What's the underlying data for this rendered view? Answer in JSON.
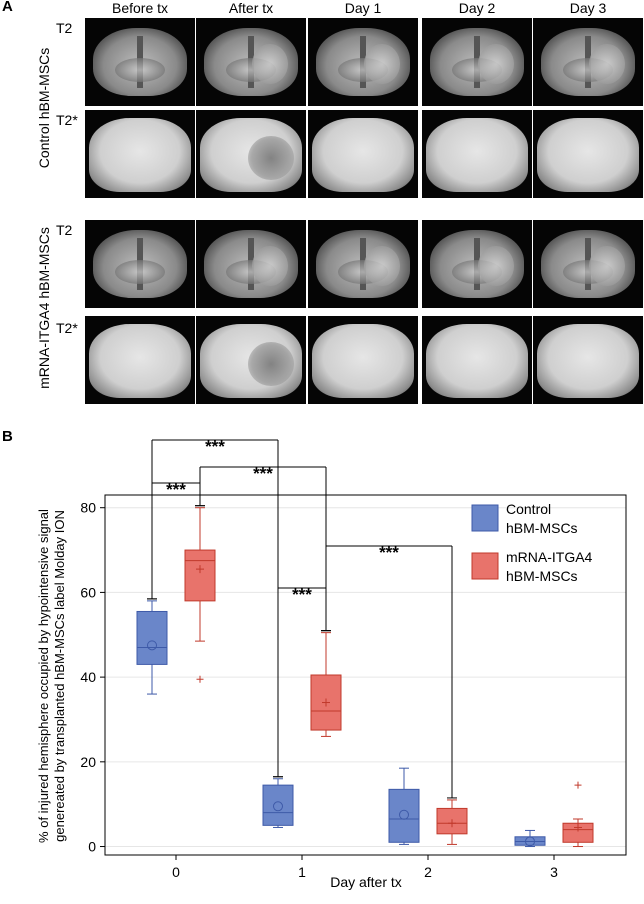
{
  "panel_a": {
    "letter": "A",
    "column_headers": [
      "Before tx",
      "After tx",
      "Day 1",
      "Day 2",
      "Day 3"
    ],
    "groups": [
      {
        "label": "Control hBM-MSCs",
        "sequences": [
          "T2",
          "T2*"
        ]
      },
      {
        "label": "mRNA-ITGA4 hBM-MSCs",
        "sequences": [
          "T2",
          "T2*"
        ]
      }
    ]
  },
  "panel_b": {
    "letter": "B"
  },
  "chart_data": {
    "type": "box",
    "title": "",
    "xlabel": "Day after tx",
    "ylabel_line1": "% of injured hemisphere occupied by hypointensive signal",
    "ylabel_line2": "genereated by transplanted hBM-MSCs label Molday ION",
    "categories": [
      "0",
      "1",
      "2",
      "3"
    ],
    "yticks": [
      "0",
      "20",
      "40",
      "60",
      "80"
    ],
    "ylim": [
      -2,
      83
    ],
    "legend_position": "top-right",
    "series": [
      {
        "name_line1": "Control",
        "name_line2": "hBM-MSCs",
        "color": "#6a86c9",
        "edge": "#3e5aa8",
        "mean_marker": "circle",
        "boxes": [
          {
            "day": 0,
            "whisker_low": 36,
            "q1": 43,
            "median": 47,
            "q3": 55.5,
            "whisker_high": 58,
            "mean": 47.5,
            "outliers": []
          },
          {
            "day": 1,
            "whisker_low": 4.5,
            "q1": 5,
            "median": 8,
            "q3": 14.5,
            "whisker_high": 16,
            "mean": 9.5,
            "outliers": []
          },
          {
            "day": 2,
            "whisker_low": 0.5,
            "q1": 1,
            "median": 6.5,
            "q3": 13.5,
            "whisker_high": 18.5,
            "mean": 7.5,
            "outliers": []
          },
          {
            "day": 3,
            "whisker_low": 0,
            "q1": 0.3,
            "median": 1.2,
            "q3": 2.3,
            "whisker_high": 3.8,
            "mean": 1.2,
            "outliers": []
          }
        ]
      },
      {
        "name_line1": "mRNA-ITGA4",
        "name_line2": "hBM-MSCs",
        "color": "#e8736b",
        "edge": "#c0392b",
        "mean_marker": "plus",
        "boxes": [
          {
            "day": 0,
            "whisker_low": 48.5,
            "q1": 58,
            "median": 67.5,
            "q3": 70,
            "whisker_high": 80,
            "mean": 65.5,
            "outliers": [
              39.5
            ]
          },
          {
            "day": 1,
            "whisker_low": 26,
            "q1": 27.5,
            "median": 32,
            "q3": 40.5,
            "whisker_high": 50.5,
            "mean": 34,
            "outliers": []
          },
          {
            "day": 2,
            "whisker_low": 0.5,
            "q1": 3,
            "median": 5.5,
            "q3": 9,
            "whisker_high": 11,
            "mean": 5.5,
            "outliers": []
          },
          {
            "day": 3,
            "whisker_low": 0,
            "q1": 1,
            "median": 4,
            "q3": 5.5,
            "whisker_high": 6.5,
            "mean": 4.5,
            "outliers": [
              14.5
            ]
          }
        ]
      }
    ],
    "significance": [
      {
        "label": "***",
        "between": "Control day 0 vs Control day 1"
      },
      {
        "label": "***",
        "between": "Control day 0 vs mRNA-ITGA4 day 0"
      },
      {
        "label": "***",
        "between": "mRNA-ITGA4 day 0 vs mRNA-ITGA4 day 1"
      },
      {
        "label": "***",
        "between": "Control day 1 vs mRNA-ITGA4 day 1"
      },
      {
        "label": "***",
        "between": "mRNA-ITGA4 day 1 vs mRNA-ITGA4 day 2"
      }
    ]
  }
}
